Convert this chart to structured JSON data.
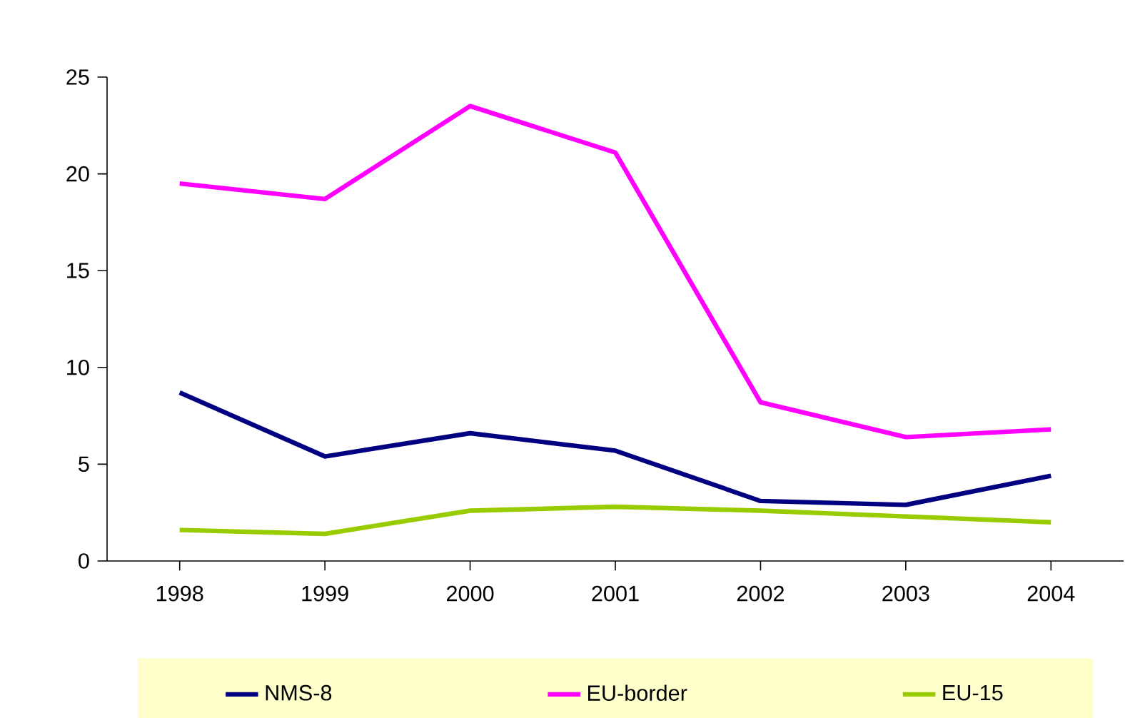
{
  "chart_data": {
    "type": "line",
    "categories": [
      "1998",
      "1999",
      "2000",
      "2001",
      "2002",
      "2003",
      "2004"
    ],
    "series": [
      {
        "name": "NMS-8",
        "color": "#000080",
        "values": [
          8.7,
          5.4,
          6.6,
          5.7,
          3.1,
          2.9,
          4.4
        ]
      },
      {
        "name": "EU-border",
        "color": "#ff00ff",
        "values": [
          19.5,
          18.7,
          23.5,
          21.1,
          8.2,
          6.4,
          6.8
        ]
      },
      {
        "name": "EU-15",
        "color": "#99cc00",
        "values": [
          1.6,
          1.4,
          2.6,
          2.8,
          2.6,
          2.3,
          2.0
        ]
      }
    ],
    "ylim": [
      0,
      25
    ],
    "yticks": [
      0,
      5,
      10,
      15,
      20,
      25
    ],
    "legend": "bottom"
  }
}
